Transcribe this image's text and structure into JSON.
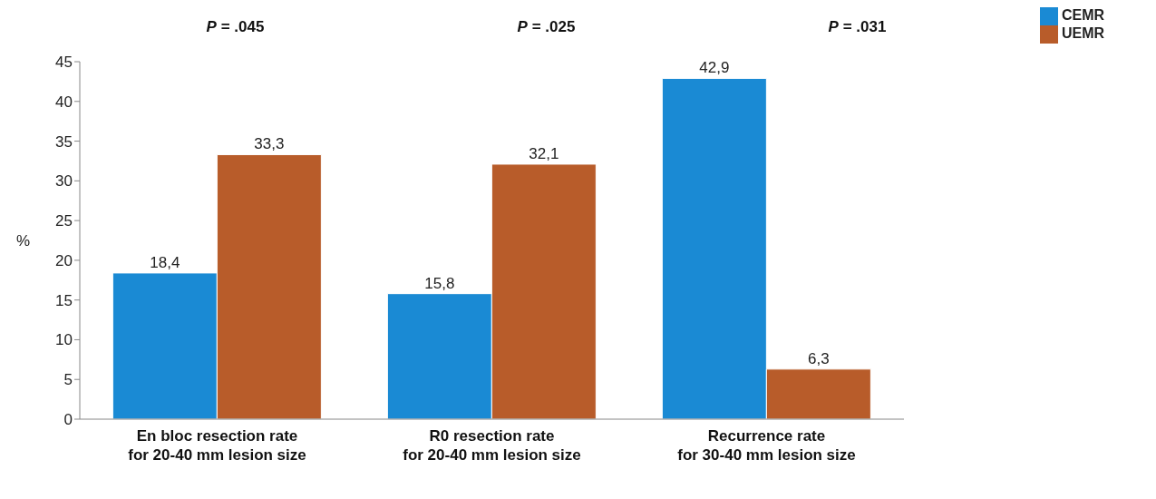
{
  "chart_data": {
    "type": "bar",
    "categories": [
      "En bloc resection rate\nfor 20-40 mm lesion size",
      "R0 resection rate\nfor 20-40 mm lesion size",
      "Recurrence rate\nfor 30-40 mm lesion size"
    ],
    "series": [
      {
        "name": "CEMR",
        "color": "#1a8ad4",
        "values": [
          18.4,
          15.8,
          42.9
        ],
        "value_labels": [
          "18,4",
          "15,8",
          "42,9"
        ]
      },
      {
        "name": "UEMR",
        "color": "#b85c2a",
        "values": [
          33.3,
          32.1,
          6.3
        ],
        "value_labels": [
          "33,3",
          "32,1",
          "6,3"
        ]
      }
    ],
    "ylabel": "%",
    "ylim": [
      0,
      45
    ],
    "yticks": [
      0,
      5,
      10,
      15,
      20,
      25,
      30,
      35,
      40,
      45
    ],
    "grid": false,
    "legend": "top right",
    "annotations": [
      "P = .045",
      "P = .025",
      "P = .031"
    ]
  }
}
